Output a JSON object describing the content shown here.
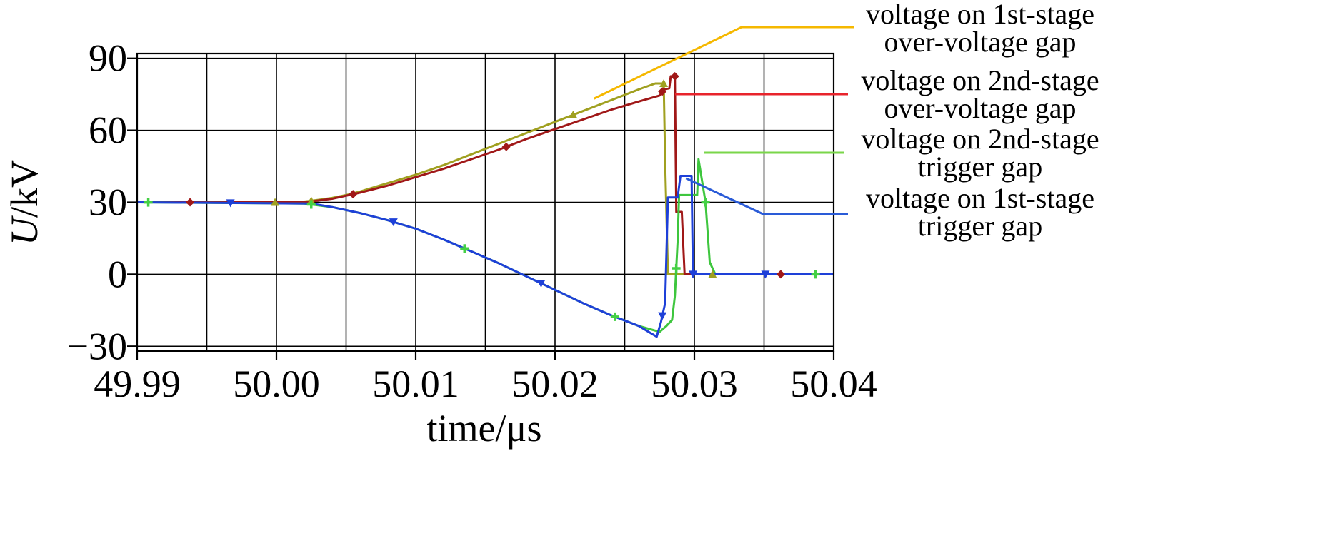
{
  "chart_data": {
    "type": "line",
    "xlabel": "time/μs",
    "ylabel_var": "U",
    "ylabel_unit": "/kV",
    "xlim": [
      49.99,
      50.04
    ],
    "ylim": [
      -32,
      92
    ],
    "x_ticks": [
      49.99,
      50.0,
      50.01,
      50.02,
      50.03,
      50.04
    ],
    "x_tick_labels": [
      "49.99",
      "50.00",
      "50.01",
      "50.02",
      "50.03",
      "50.04"
    ],
    "x_minor_gridlines": [
      49.995,
      50.005,
      50.015,
      50.025,
      50.035
    ],
    "y_ticks": [
      -30,
      0,
      30,
      60,
      90
    ],
    "y_tick_labels": [
      "−30",
      "0",
      "30",
      "60",
      "90"
    ],
    "grid": true,
    "legend_placement": "right",
    "series": [
      {
        "name": "voltage on 1st-stage over-voltage gap",
        "legend_lines": [
          "voltage on 1st-stage",
          "over-voltage gap"
        ],
        "color": "#a0a020",
        "marker_color": "#a0a020",
        "legend_color": "#f5b800",
        "marker": "triangle-up",
        "marker_x": [
          49.9999,
          50.0025,
          50.0213,
          50.0278,
          50.0313
        ],
        "x": [
          49.99,
          50.001,
          50.002,
          50.003,
          50.004,
          50.005,
          50.006,
          50.008,
          50.01,
          50.012,
          50.014,
          50.016,
          50.018,
          50.02,
          50.022,
          50.024,
          50.026,
          50.0272,
          50.0278,
          50.0279,
          50.0281,
          50.04
        ],
        "values": [
          30,
          30,
          30.3,
          31,
          31.8,
          33,
          34.5,
          38,
          41.5,
          45.5,
          50,
          54.5,
          59,
          63.5,
          68,
          72.5,
          77,
          79.5,
          79.5,
          47,
          0,
          0
        ]
      },
      {
        "name": "voltage on 2nd-stage over-voltage gap",
        "legend_lines": [
          "voltage on 2nd-stage",
          "over-voltage gap"
        ],
        "color": "#a01818",
        "marker_color": "#a01818",
        "legend_color": "#e8242c",
        "marker": "diamond",
        "marker_x": [
          49.9938,
          50.0055,
          50.0165,
          50.0277,
          50.0286,
          50.0362
        ],
        "x": [
          49.99,
          50.002,
          50.004,
          50.006,
          50.008,
          50.01,
          50.012,
          50.014,
          50.016,
          50.018,
          50.02,
          50.022,
          50.024,
          50.026,
          50.0275,
          50.0278,
          50.0282,
          50.0283,
          50.0286,
          50.0287,
          50.0291,
          50.0293,
          50.04
        ],
        "values": [
          30,
          30,
          31.5,
          34,
          37,
          40.5,
          44,
          48,
          52,
          56.5,
          60.5,
          64.5,
          68.5,
          72,
          74.5,
          77,
          77.5,
          82.5,
          82.5,
          26,
          26,
          0,
          0
        ]
      },
      {
        "name": "voltage on 2nd-stage trigger gap",
        "legend_lines": [
          "voltage on 2nd-stage",
          "trigger gap"
        ],
        "color": "#3ec63e",
        "marker_color": "#44d044",
        "legend_color": "#7ad64a",
        "marker": "cross",
        "marker_x": [
          49.9908,
          50.0025,
          50.0135,
          50.0243,
          50.0287,
          50.0308,
          50.0387
        ],
        "x": [
          49.99,
          50.002,
          50.004,
          50.006,
          50.008,
          50.01,
          50.012,
          50.014,
          50.016,
          50.018,
          50.02,
          50.022,
          50.024,
          50.026,
          50.0275,
          50.028,
          50.0284,
          50.0286,
          50.0288,
          50.0289,
          50.0302,
          50.0303,
          50.0308,
          50.0311,
          50.0315,
          50.04
        ],
        "values": [
          30,
          29.5,
          28,
          25.5,
          22.5,
          19,
          14.5,
          9.5,
          4.5,
          -1,
          -6.5,
          -12,
          -17,
          -21.5,
          -24,
          -21.5,
          -19,
          -9,
          14,
          33,
          33,
          48,
          30,
          5,
          0,
          0
        ]
      },
      {
        "name": "voltage on 1st-stage trigger gap",
        "legend_lines": [
          "voltage on 1st-stage",
          "trigger gap"
        ],
        "color": "#1e40d8",
        "marker_color": "#1e40d8",
        "legend_color": "#2a5bd7",
        "marker": "triangle-down",
        "marker_x": [
          49.9967,
          50.0084,
          50.019,
          50.0277,
          50.0299,
          50.0351
        ],
        "x": [
          49.99,
          50.0025,
          50.004,
          50.006,
          50.008,
          50.01,
          50.012,
          50.014,
          50.016,
          50.018,
          50.02,
          50.022,
          50.024,
          50.026,
          50.0273,
          50.0276,
          50.0279,
          50.0281,
          50.0288,
          50.029,
          50.0298,
          50.0299,
          50.03,
          50.04
        ],
        "values": [
          30,
          29.5,
          28,
          25.5,
          22.5,
          19,
          14.5,
          9.5,
          4.5,
          -1,
          -6.5,
          -12,
          -17,
          -21.5,
          -26,
          -20,
          -12,
          32,
          32,
          41,
          41,
          0,
          0,
          0
        ]
      }
    ],
    "legend_leaders": [
      {
        "from": [
          50.0228,
          72
        ],
        "to": [
          50.0281,
          82
        ]
      },
      {
        "from": [
          50.0283,
          74
        ],
        "to": null
      },
      {
        "from": [
          50.0302,
          50
        ],
        "to": null
      },
      {
        "from": [
          50.0294,
          40
        ],
        "to": [
          50.0351,
          26
        ]
      }
    ]
  }
}
